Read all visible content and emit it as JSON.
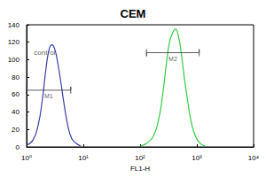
{
  "chart_data": {
    "type": "line",
    "title": "CEM",
    "x_label": "FL1-H",
    "log": "x",
    "xlim": [
      1,
      10000
    ],
    "xticks": [
      {
        "value": 1,
        "label": "10⁰"
      },
      {
        "value": 10,
        "label": "10¹"
      },
      {
        "value": 100,
        "label": "10²"
      },
      {
        "value": 1000,
        "label": "10³"
      },
      {
        "value": 10000,
        "label": "10⁴"
      }
    ],
    "ylim": [
      0,
      140
    ],
    "yticks": [
      0,
      20,
      40,
      60,
      80,
      100,
      120,
      140
    ],
    "grid": false,
    "series": [
      {
        "name": "control",
        "color": "#3a3fa8",
        "x": [
          1.0,
          1.3,
          1.6,
          1.9,
          2.2,
          2.5,
          2.8,
          3.1,
          3.5,
          4.0,
          4.6,
          5.3,
          6.2,
          7.5,
          9.0
        ],
        "values": [
          2,
          8,
          25,
          55,
          90,
          112,
          117,
          113,
          98,
          75,
          48,
          25,
          10,
          4,
          1
        ]
      },
      {
        "color": "#33cc44",
        "x": [
          100,
          130,
          170,
          210,
          250,
          290,
          330,
          370,
          420,
          470,
          530,
          600,
          700,
          800,
          950,
          1150,
          1400
        ],
        "values": [
          1,
          4,
          12,
          30,
          60,
          95,
          120,
          130,
          135,
          128,
          108,
          80,
          50,
          28,
          12,
          4,
          1
        ]
      }
    ],
    "markers": [
      {
        "label": "M1",
        "x_range": [
          1,
          6
        ],
        "y": 65
      },
      {
        "label": "M2",
        "x_range": [
          130,
          1100
        ],
        "y": 108
      }
    ],
    "annotations": [
      {
        "text": "control",
        "x": 1.35,
        "y": 108
      }
    ]
  }
}
